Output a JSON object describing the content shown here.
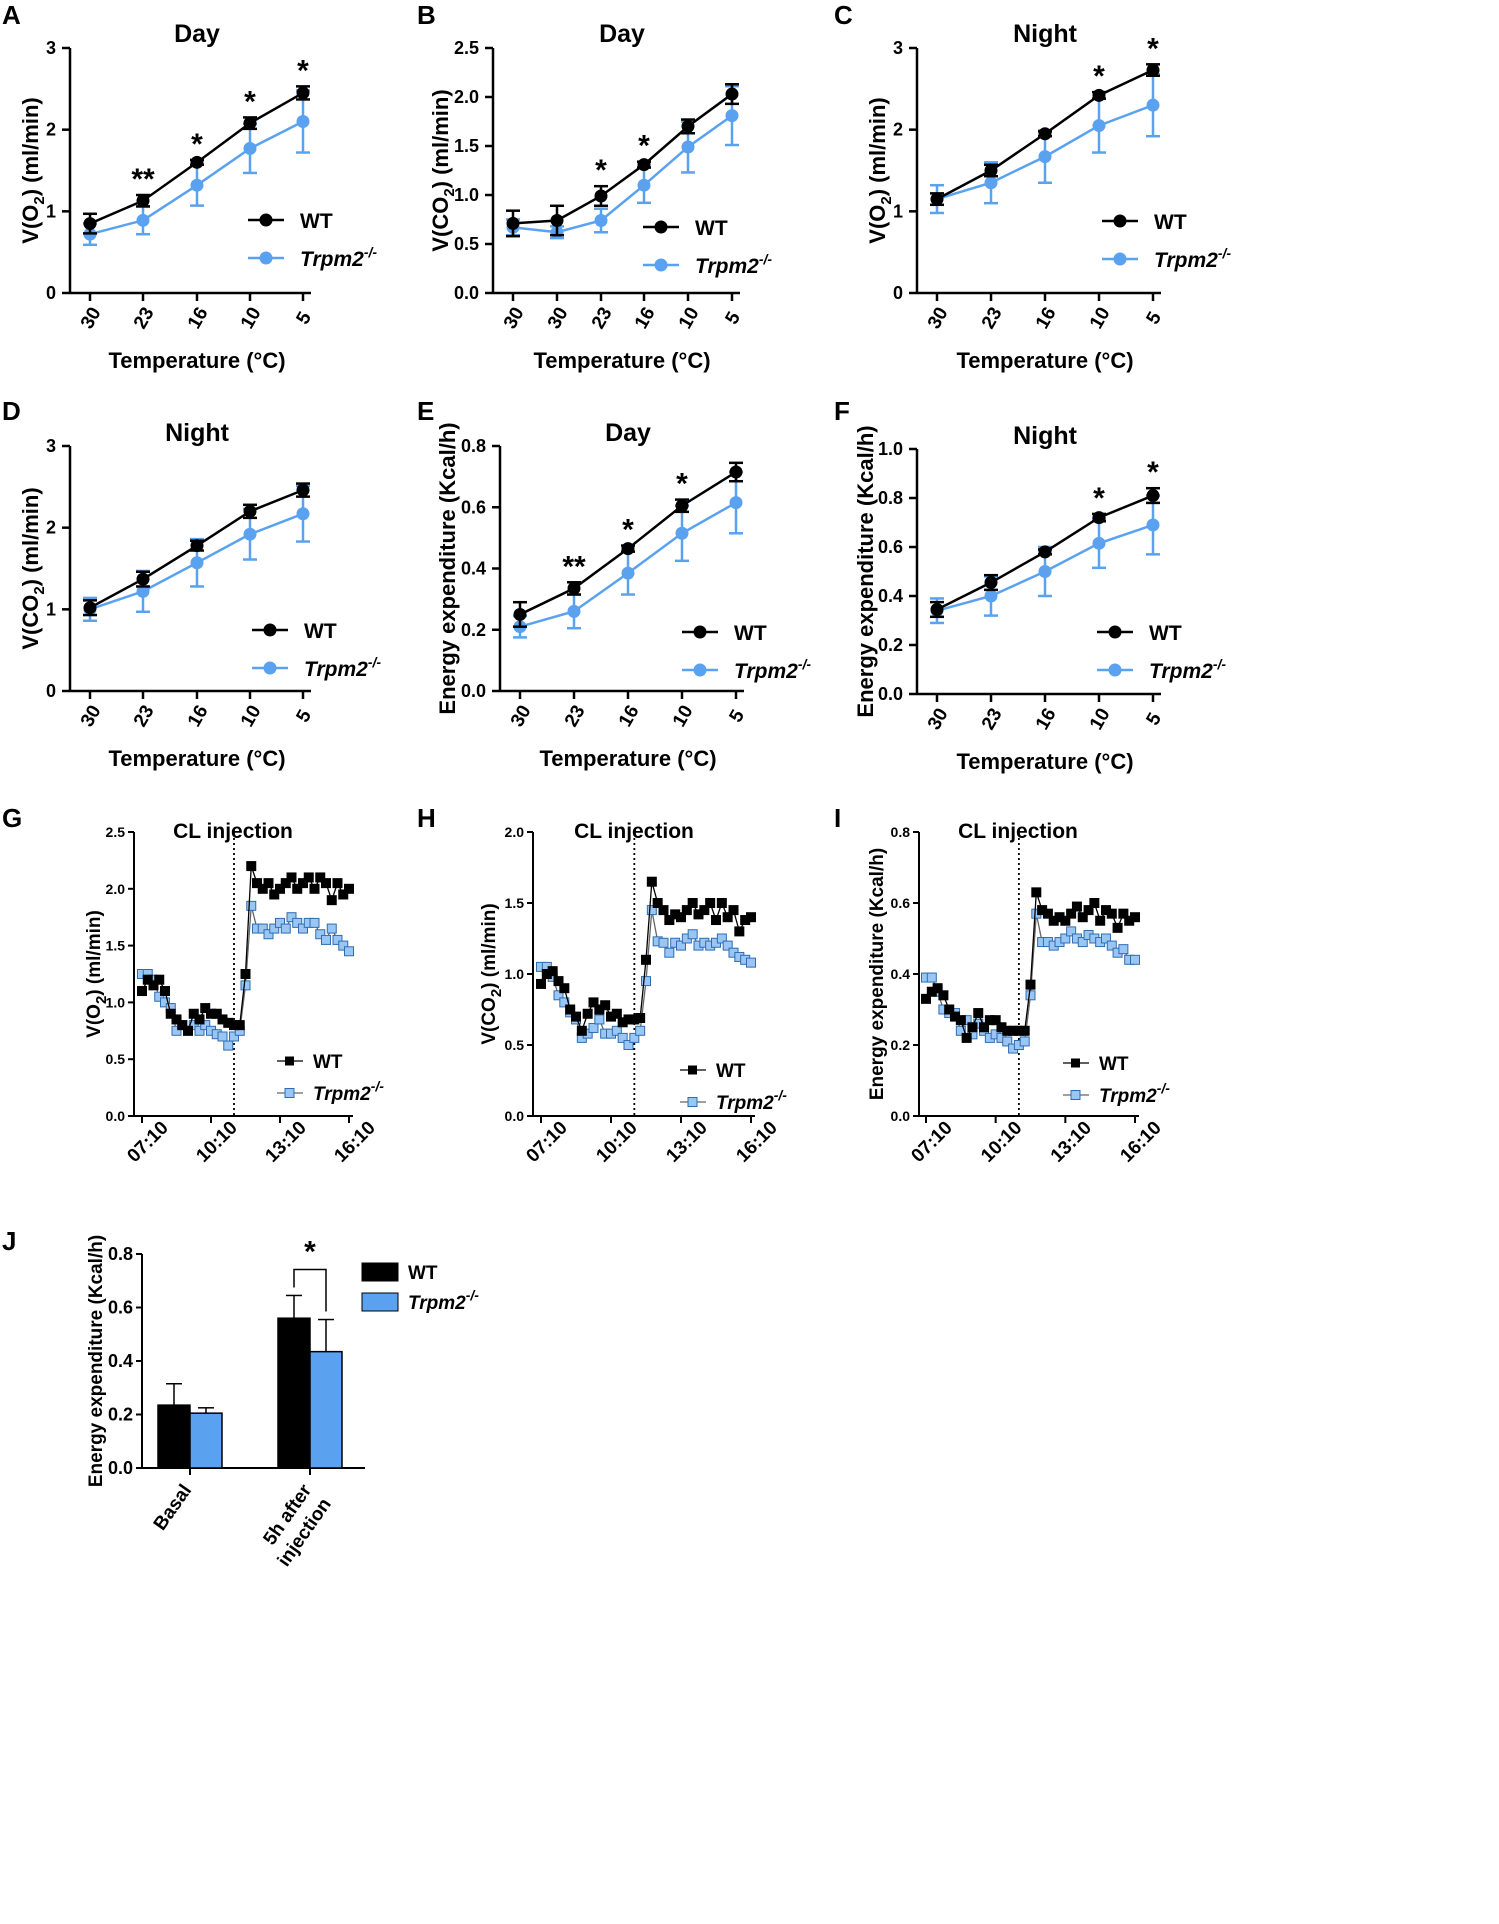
{
  "colors": {
    "wt": "#000000",
    "ko": "#5aa2f0",
    "ko_fill": "#99c6f4"
  },
  "legend": {
    "wt": "WT",
    "ko_base": "Trpm2",
    "ko_sup": "-/-"
  },
  "chart_data": [
    {
      "id": "A",
      "type": "line",
      "title": "Day",
      "ylabel_pre": "V(O",
      "ylabel_sub": "2",
      "ylabel_post": ") (ml/min)",
      "xlabel": "Temperature (°C)",
      "categories": [
        "30",
        "23",
        "16",
        "10",
        "5"
      ],
      "ylim": [
        0,
        3
      ],
      "yticks": [
        "0",
        "1",
        "2",
        "3"
      ],
      "series": [
        {
          "name": "WT",
          "values": [
            0.85,
            1.13,
            1.6,
            2.08,
            2.45
          ],
          "err": [
            0.12,
            0.07,
            0.03,
            0.07,
            0.08
          ]
        },
        {
          "name": "Trpm2-/-",
          "values": [
            0.72,
            0.89,
            1.32,
            1.77,
            2.1
          ],
          "err": [
            0.13,
            0.17,
            0.25,
            0.3,
            0.38
          ]
        }
      ],
      "significance": [
        "",
        "**",
        "*",
        "*",
        "*"
      ]
    },
    {
      "id": "B",
      "type": "line",
      "title": "Day",
      "ylabel_pre": "V(CO",
      "ylabel_sub": "2",
      "ylabel_post": ") (ml/min)",
      "xlabel": "Temperature (°C)",
      "categories": [
        "30",
        "30",
        "23",
        "16",
        "10",
        "5"
      ],
      "ylim": [
        0,
        2.5
      ],
      "yticks": [
        "0.0",
        "0.5",
        "1.0",
        "1.5",
        "2.0",
        "2.5"
      ],
      "series": [
        {
          "name": "WT",
          "values": [
            0.71,
            0.74,
            0.99,
            1.31,
            1.7,
            2.03
          ],
          "err": [
            0.13,
            0.15,
            0.1,
            0.03,
            0.07,
            0.1
          ]
        },
        {
          "name": "Trpm2-/-",
          "values": [
            0.67,
            0.62,
            0.74,
            1.1,
            1.49,
            1.81
          ],
          "err": [
            0.08,
            0.06,
            0.12,
            0.18,
            0.26,
            0.3
          ]
        }
      ],
      "significance": [
        "",
        "",
        "*",
        "*",
        "",
        ""
      ]
    },
    {
      "id": "C",
      "type": "line",
      "title": "Night",
      "ylabel_pre": "V(O",
      "ylabel_sub": "2",
      "ylabel_post": ") (ml/min)",
      "xlabel": "Temperature (°C)",
      "categories": [
        "30",
        "23",
        "16",
        "10",
        "5"
      ],
      "ylim": [
        0,
        3
      ],
      "yticks": [
        "0",
        "1",
        "2",
        "3"
      ],
      "series": [
        {
          "name": "WT",
          "values": [
            1.15,
            1.5,
            1.95,
            2.42,
            2.73
          ],
          "err": [
            0.07,
            0.07,
            0.03,
            0.04,
            0.07
          ]
        },
        {
          "name": "Trpm2-/-",
          "values": [
            1.15,
            1.35,
            1.67,
            2.05,
            2.3
          ],
          "err": [
            0.17,
            0.25,
            0.32,
            0.33,
            0.38
          ]
        }
      ],
      "significance": [
        "",
        "",
        "",
        "*",
        "*"
      ]
    },
    {
      "id": "D",
      "type": "line",
      "title": "Night",
      "ylabel_pre": "V(CO",
      "ylabel_sub": "2",
      "ylabel_post": ") (ml/min)",
      "xlabel": "Temperature (°C)",
      "categories": [
        "30",
        "23",
        "16",
        "10",
        "5"
      ],
      "ylim": [
        0,
        3
      ],
      "yticks": [
        "0",
        "1",
        "2",
        "3"
      ],
      "series": [
        {
          "name": "WT",
          "values": [
            1.02,
            1.37,
            1.78,
            2.2,
            2.46
          ],
          "err": [
            0.09,
            0.09,
            0.06,
            0.08,
            0.08
          ]
        },
        {
          "name": "Trpm2-/-",
          "values": [
            1.0,
            1.22,
            1.57,
            1.92,
            2.17
          ],
          "err": [
            0.14,
            0.25,
            0.29,
            0.31,
            0.34
          ]
        }
      ],
      "significance": [
        "",
        "",
        "",
        "",
        ""
      ]
    },
    {
      "id": "E",
      "type": "line",
      "title": "Day",
      "ylabel": "Energy expenditure (Kcal/h)",
      "xlabel": "Temperature (°C)",
      "categories": [
        "30",
        "23",
        "16",
        "10",
        "5"
      ],
      "ylim": [
        0,
        0.8
      ],
      "yticks": [
        "0.0",
        "0.2",
        "0.4",
        "0.6",
        "0.8"
      ],
      "series": [
        {
          "name": "WT",
          "values": [
            0.25,
            0.335,
            0.465,
            0.605,
            0.715
          ],
          "err": [
            0.04,
            0.02,
            0.01,
            0.02,
            0.03
          ]
        },
        {
          "name": "Trpm2-/-",
          "values": [
            0.21,
            0.26,
            0.385,
            0.515,
            0.615
          ],
          "err": [
            0.035,
            0.055,
            0.07,
            0.09,
            0.1
          ]
        }
      ],
      "significance": [
        "",
        "**",
        "*",
        "*",
        ""
      ]
    },
    {
      "id": "F",
      "type": "line",
      "title": "Night",
      "ylabel": "Energy expenditure (Kcal/h)",
      "xlabel": "Temperature (°C)",
      "categories": [
        "30",
        "23",
        "16",
        "10",
        "5"
      ],
      "ylim": [
        0,
        1
      ],
      "yticks": [
        "0.0",
        "0.2",
        "0.4",
        "0.6",
        "0.8",
        "1.0"
      ],
      "series": [
        {
          "name": "WT",
          "values": [
            0.345,
            0.455,
            0.58,
            0.72,
            0.81
          ],
          "err": [
            0.03,
            0.03,
            0.01,
            0.015,
            0.03
          ]
        },
        {
          "name": "Trpm2-/-",
          "values": [
            0.34,
            0.4,
            0.5,
            0.615,
            0.69
          ],
          "err": [
            0.05,
            0.08,
            0.1,
            0.1,
            0.12
          ]
        }
      ],
      "significance": [
        "",
        "",
        "",
        "*",
        "*"
      ]
    },
    {
      "id": "G",
      "type": "line",
      "title": "CL injection",
      "ylabel_pre": "V(O",
      "ylabel_sub": "2",
      "ylabel_post": ") (ml/min)",
      "xlim": [
        0,
        36
      ],
      "injection_x": 16,
      "xticks": [
        {
          "x": 0,
          "label": "07:10"
        },
        {
          "x": 12,
          "label": "10:10"
        },
        {
          "x": 24,
          "label": "13:10"
        },
        {
          "x": 36,
          "label": "16:10"
        }
      ],
      "ylim": [
        0,
        2.5
      ],
      "yticks": [
        "0.0",
        "0.5",
        "1.0",
        "1.5",
        "2.0",
        "2.5"
      ],
      "series": [
        {
          "name": "WT",
          "values": [
            1.1,
            1.2,
            1.15,
            1.2,
            1.1,
            0.9,
            0.85,
            0.8,
            0.75,
            0.9,
            0.85,
            0.95,
            0.9,
            0.9,
            0.85,
            0.82,
            0.8,
            0.8,
            1.25,
            2.2,
            2.05,
            2.0,
            2.05,
            1.95,
            2.0,
            2.05,
            2.1,
            2.0,
            2.05,
            2.1,
            2.0,
            2.1,
            2.05,
            1.9,
            2.05,
            1.95,
            2.0
          ]
        },
        {
          "name": "Trpm2-/-",
          "values": [
            1.25,
            1.25,
            1.2,
            1.05,
            1.0,
            0.95,
            0.75,
            0.8,
            0.75,
            0.8,
            0.75,
            0.8,
            0.75,
            0.72,
            0.7,
            0.62,
            0.7,
            0.75,
            1.15,
            1.85,
            1.65,
            1.65,
            1.6,
            1.65,
            1.7,
            1.65,
            1.75,
            1.7,
            1.65,
            1.7,
            1.7,
            1.6,
            1.55,
            1.65,
            1.55,
            1.5,
            1.45
          ]
        }
      ]
    },
    {
      "id": "H",
      "type": "line",
      "title": "CL injection",
      "ylabel_pre": "V(CO",
      "ylabel_sub": "2",
      "ylabel_post": ") (ml/min)",
      "xlim": [
        0,
        36
      ],
      "injection_x": 16,
      "xticks": [
        {
          "x": 0,
          "label": "07:10"
        },
        {
          "x": 12,
          "label": "10:10"
        },
        {
          "x": 24,
          "label": "13:10"
        },
        {
          "x": 36,
          "label": "16:10"
        }
      ],
      "ylim": [
        0,
        2.0
      ],
      "yticks": [
        "0.0",
        "0.5",
        "1.0",
        "1.5",
        "2.0"
      ],
      "series": [
        {
          "name": "WT",
          "values": [
            0.93,
            1.0,
            1.02,
            0.95,
            0.9,
            0.75,
            0.7,
            0.6,
            0.72,
            0.8,
            0.75,
            0.78,
            0.7,
            0.72,
            0.66,
            0.68,
            0.68,
            0.69,
            1.1,
            1.65,
            1.5,
            1.45,
            1.38,
            1.42,
            1.4,
            1.45,
            1.5,
            1.42,
            1.45,
            1.5,
            1.38,
            1.5,
            1.4,
            1.45,
            1.3,
            1.38,
            1.4
          ]
        },
        {
          "name": "Trpm2-/-",
          "values": [
            1.05,
            1.05,
            0.98,
            0.85,
            0.8,
            0.73,
            0.68,
            0.55,
            0.58,
            0.62,
            0.68,
            0.58,
            0.58,
            0.6,
            0.55,
            0.5,
            0.55,
            0.6,
            0.95,
            1.45,
            1.23,
            1.22,
            1.15,
            1.22,
            1.2,
            1.25,
            1.28,
            1.2,
            1.22,
            1.2,
            1.22,
            1.25,
            1.2,
            1.15,
            1.12,
            1.1,
            1.08
          ]
        }
      ]
    },
    {
      "id": "I",
      "type": "line",
      "title": "CL injection",
      "ylabel": "Energy expenditure (Kcal/h)",
      "xlim": [
        0,
        36
      ],
      "injection_x": 16,
      "xticks": [
        {
          "x": 0,
          "label": "07:10"
        },
        {
          "x": 12,
          "label": "10:10"
        },
        {
          "x": 24,
          "label": "13:10"
        },
        {
          "x": 36,
          "label": "16:10"
        }
      ],
      "ylim": [
        0,
        0.8
      ],
      "yticks": [
        "0.0",
        "0.2",
        "0.4",
        "0.6",
        "0.8"
      ],
      "series": [
        {
          "name": "WT",
          "values": [
            0.33,
            0.35,
            0.36,
            0.34,
            0.3,
            0.28,
            0.27,
            0.22,
            0.25,
            0.29,
            0.25,
            0.27,
            0.27,
            0.25,
            0.24,
            0.24,
            0.24,
            0.24,
            0.37,
            0.63,
            0.58,
            0.57,
            0.55,
            0.56,
            0.55,
            0.57,
            0.59,
            0.56,
            0.58,
            0.6,
            0.55,
            0.58,
            0.57,
            0.53,
            0.57,
            0.55,
            0.56
          ]
        },
        {
          "name": "Trpm2-/-",
          "values": [
            0.39,
            0.39,
            0.35,
            0.3,
            0.29,
            0.29,
            0.24,
            0.27,
            0.23,
            0.26,
            0.24,
            0.22,
            0.23,
            0.22,
            0.21,
            0.19,
            0.2,
            0.21,
            0.34,
            0.57,
            0.49,
            0.49,
            0.48,
            0.49,
            0.5,
            0.52,
            0.5,
            0.49,
            0.51,
            0.5,
            0.49,
            0.5,
            0.48,
            0.46,
            0.47,
            0.44,
            0.44
          ]
        }
      ]
    },
    {
      "id": "J",
      "type": "bar",
      "ylabel": "Energy expenditure (Kcal/h)",
      "categories": [
        "Basal",
        "5h after injection"
      ],
      "category_lines": [
        [
          "Basal"
        ],
        [
          "5h after",
          "injection"
        ]
      ],
      "ylim": [
        0,
        0.8
      ],
      "yticks": [
        "0.0",
        "0.2",
        "0.4",
        "0.6",
        "0.8"
      ],
      "series": [
        {
          "name": "WT",
          "values": [
            0.235,
            0.56
          ],
          "err": [
            0.08,
            0.085
          ]
        },
        {
          "name": "Trpm2-/-",
          "values": [
            0.205,
            0.435
          ],
          "err": [
            0.02,
            0.12
          ]
        }
      ],
      "significance": "*"
    }
  ]
}
